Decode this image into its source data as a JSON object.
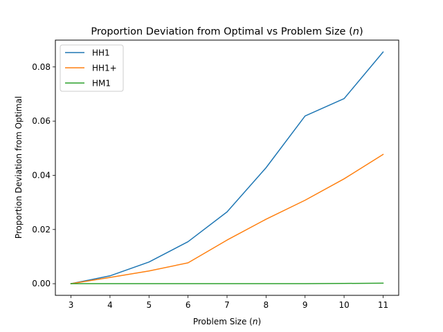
{
  "chart_data": {
    "type": "line",
    "title_main": "Proportion Deviation from Optimal vs Problem Size (",
    "title_var": "n",
    "title_close": ")",
    "xlabel_main": "Problem Size (",
    "xlabel_var": "n",
    "xlabel_close": ")",
    "ylabel": "Proportion Deviation from Optimal",
    "x": [
      3,
      4,
      5,
      6,
      7,
      8,
      9,
      10,
      11
    ],
    "xlim": [
      2.6,
      11.4
    ],
    "ylim": [
      -0.0043,
      0.0899
    ],
    "xticks": [
      3,
      4,
      5,
      6,
      7,
      8,
      9,
      10,
      11
    ],
    "yticks": [
      0.0,
      0.02,
      0.04,
      0.06,
      0.08
    ],
    "ytick_labels": [
      "0.00",
      "0.02",
      "0.04",
      "0.06",
      "0.08"
    ],
    "grid": false,
    "legend_position": "top-left",
    "series": [
      {
        "name": "HH1",
        "color": "#1f77b4",
        "values": [
          0.0,
          0.0029,
          0.008,
          0.0155,
          0.0265,
          0.0428,
          0.0619,
          0.0683,
          0.0855
        ]
      },
      {
        "name": "HH1+",
        "color": "#ff7f0e",
        "values": [
          0.0,
          0.0023,
          0.0047,
          0.0077,
          0.0161,
          0.0238,
          0.0308,
          0.0387,
          0.0477
        ]
      },
      {
        "name": "HM1",
        "color": "#2ca02c",
        "values": [
          0.0,
          0.0,
          0.0,
          0.0,
          0.0,
          0.0,
          0.0,
          0.0001,
          0.0002
        ]
      }
    ]
  }
}
